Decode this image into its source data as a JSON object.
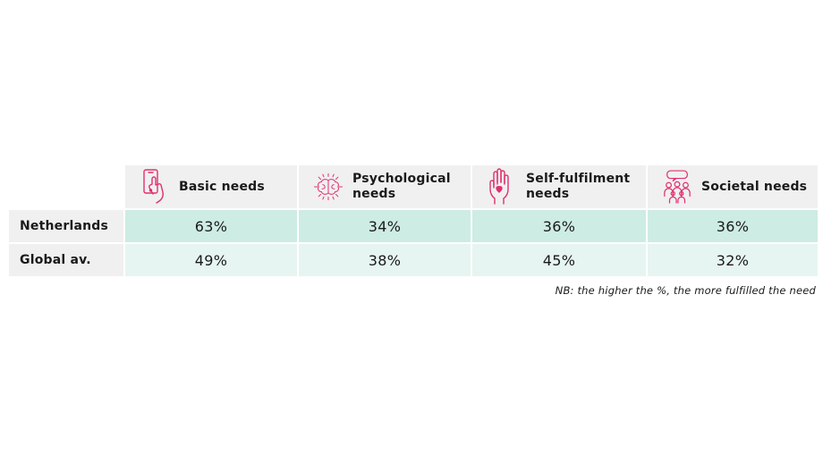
{
  "chart_data": {
    "type": "table",
    "columns": [
      {
        "label": "Basic needs",
        "icon": "hand-phone-icon"
      },
      {
        "label": "Psychological needs",
        "icon": "brain-icon"
      },
      {
        "label": "Self-fulfilment needs",
        "icon": "heart-hand-icon"
      },
      {
        "label": "Societal needs",
        "icon": "people-speech-icon"
      }
    ],
    "rows": [
      {
        "label": "Netherlands",
        "values": [
          "63%",
          "34%",
          "36%",
          "36%"
        ]
      },
      {
        "label": "Global av.",
        "values": [
          "49%",
          "38%",
          "45%",
          "32%"
        ]
      }
    ],
    "note": "NB: the higher the %, the more fulfilled the need"
  },
  "colors": {
    "icon": "#e0306e",
    "header_bg": "#f0f0f0",
    "row1_bg": "#cdece3",
    "row2_bg": "#e6f5f1"
  }
}
